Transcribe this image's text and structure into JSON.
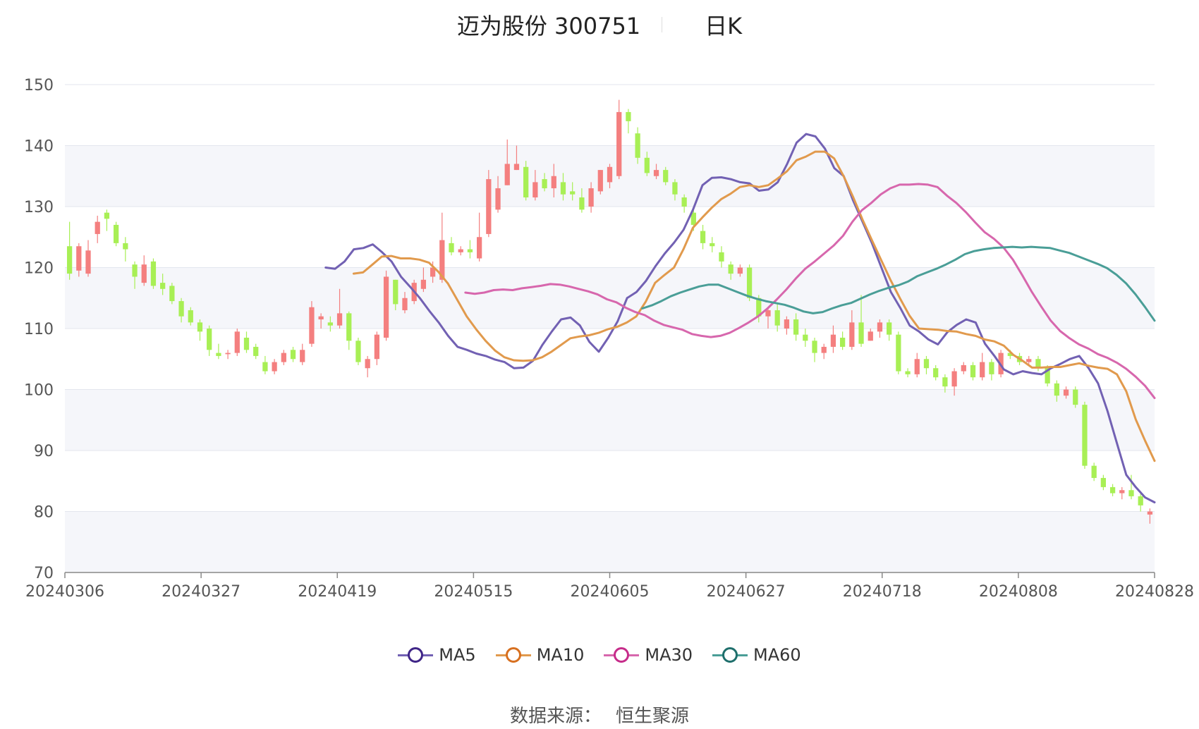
{
  "chart_data": {
    "type": "candlestick",
    "title": "迈为股份 300751",
    "subtitle": "日K",
    "y_ticks": [
      70,
      80,
      90,
      100,
      110,
      120,
      130,
      140,
      150
    ],
    "ylim": [
      70,
      150
    ],
    "x_tick_labels": [
      "20240306",
      "20240327",
      "20240419",
      "20240515",
      "20240605",
      "20240627",
      "20240718",
      "20240808",
      "20240828"
    ],
    "grid": true,
    "legend_position": "bottom",
    "colors": {
      "up": "#f47f7f",
      "down": "#a8ef55",
      "ma5": "#7261b3",
      "ma10": "#e19a4d",
      "ma30": "#d767ad",
      "ma60": "#4a9e97",
      "grid": "#e3e6ee",
      "band": "#f5f6fa",
      "axis": "#888888"
    },
    "series": [
      {
        "name": "MA5",
        "key": "ma5",
        "values": [
          120,
          119.8,
          121,
          123,
          123.2,
          123.8,
          122.5,
          121,
          118.5,
          116.8,
          115,
          112.9,
          111,
          108.8,
          107,
          106.5,
          105.9,
          105.5,
          104.9,
          104.5,
          103.5,
          103.6,
          104.7,
          107.3,
          109.5,
          111.5,
          111.8,
          110.5,
          107.8,
          106.2,
          108.5,
          111.2,
          115,
          116,
          117.8,
          120.2,
          122.3,
          124.1,
          126.2,
          129.5,
          133.5,
          134.7,
          134.8,
          134.5,
          134,
          133.8,
          132.6,
          132.8,
          134,
          137,
          140.5,
          141.9,
          141.5,
          139.5,
          136.3,
          135,
          131,
          127.5,
          124,
          120,
          116,
          113.4,
          110.5,
          109.5,
          108.2,
          107.4,
          109.4,
          110.6,
          111.5,
          111,
          107.5,
          105.5,
          103.3,
          102.5,
          103,
          102.7,
          102.5,
          103.5,
          104.2,
          105,
          105.5,
          103.5,
          101,
          96.5,
          91.2,
          86,
          84,
          82.3,
          81.5
        ]
      },
      {
        "name": "MA10",
        "key": "ma10",
        "values": [
          119,
          119.2,
          120.5,
          121.8,
          121.9,
          121.5,
          121.5,
          121.3,
          120.8,
          119.3,
          117.4,
          114.7,
          112,
          109.9,
          108,
          106.4,
          105.3,
          104.8,
          104.7,
          104.8,
          105.3,
          106.2,
          107.3,
          108.4,
          108.7,
          108.9,
          109.3,
          109.9,
          110.3,
          111,
          112,
          114.4,
          117.5,
          118.8,
          120,
          123,
          126.5,
          128.2,
          129.8,
          131.2,
          132.1,
          133.2,
          133.5,
          133.2,
          133.5,
          134.6,
          135.8,
          137.6,
          138.2,
          139,
          139,
          137.9,
          135,
          131.6,
          127.9,
          124.5,
          121.2,
          117.9,
          114.9,
          112.1,
          110,
          109.9,
          109.8,
          109.6,
          109.5,
          109.1,
          108.8,
          108.2,
          107.9,
          107.2,
          105.7,
          104.7,
          103.6,
          103.6,
          103.7,
          103.7,
          104,
          104.3,
          103.9,
          103.6,
          103.4,
          102.5,
          99.7,
          95.1,
          91.6,
          88.3
        ]
      },
      {
        "name": "MA30",
        "key": "ma30",
        "values": [
          115.9,
          115.7,
          115.9,
          116.3,
          116.4,
          116.3,
          116.6,
          116.8,
          117,
          117.3,
          117.2,
          116.9,
          116.5,
          116.1,
          115.6,
          114.8,
          114.3,
          113.4,
          112.7,
          112.2,
          111.3,
          110.6,
          110.2,
          109.8,
          109.1,
          108.8,
          108.6,
          108.8,
          109.3,
          110.1,
          111,
          112,
          113.3,
          114.8,
          116.4,
          118.2,
          119.8,
          121,
          122.3,
          123.6,
          125.2,
          127.5,
          129.4,
          130.6,
          132,
          133,
          133.6,
          133.6,
          133.7,
          133.6,
          133.2,
          131.8,
          130.6,
          129.1,
          127.4,
          125.8,
          124.7,
          123.3,
          121.3,
          118.7,
          116,
          113.6,
          111.3,
          109.6,
          108.4,
          107.4,
          106.7,
          105.8,
          105.2,
          104.4,
          103.4,
          102.1,
          100.6,
          98.6
        ]
      },
      {
        "name": "MA60",
        "key": "ma60",
        "values": [
          113.3,
          113.8,
          114.5,
          115.3,
          115.9,
          116.4,
          116.9,
          117.2,
          117.2,
          116.6,
          116,
          115.4,
          114.9,
          114.5,
          114.2,
          113.9,
          113.4,
          112.8,
          112.5,
          112.7,
          113.3,
          113.8,
          114.2,
          114.9,
          115.6,
          116.2,
          116.7,
          117.1,
          117.7,
          118.6,
          119.2,
          119.8,
          120.5,
          121.3,
          122.2,
          122.7,
          123,
          123.2,
          123.3,
          123.4,
          123.3,
          123.4,
          123.3,
          123.2,
          122.8,
          122.4,
          121.8,
          121.2,
          120.6,
          119.9,
          118.8,
          117.4,
          115.6,
          113.5,
          111.3
        ]
      }
    ],
    "candles": [
      [
        123.5,
        119,
        127.5,
        118
      ],
      [
        119.5,
        123.5,
        124,
        118.5
      ],
      [
        119,
        122.8,
        124.5,
        118.5
      ],
      [
        125.5,
        127.5,
        128.5,
        124
      ],
      [
        129,
        128,
        129.5,
        126
      ],
      [
        127,
        124,
        127.5,
        123.5
      ],
      [
        124,
        123,
        125,
        121
      ],
      [
        120.5,
        118.5,
        121,
        116.5
      ],
      [
        117.5,
        120.5,
        122,
        117
      ],
      [
        121,
        117,
        121.5,
        116.5
      ],
      [
        117.5,
        116.5,
        119,
        115.5
      ],
      [
        117,
        114.5,
        117.5,
        114
      ],
      [
        114.5,
        112,
        115,
        111
      ],
      [
        113,
        111,
        113.5,
        110.5
      ],
      [
        111,
        109.5,
        111.5,
        108
      ],
      [
        110,
        106.5,
        110.5,
        105.5
      ],
      [
        106,
        105.5,
        107.5,
        105
      ],
      [
        105.8,
        106,
        106.5,
        105
      ],
      [
        106,
        109.5,
        110,
        105.5
      ],
      [
        108.5,
        106.5,
        109.5,
        106
      ],
      [
        107,
        105.5,
        107.5,
        105
      ],
      [
        104.5,
        103,
        105.5,
        102.5
      ],
      [
        103,
        104.5,
        105,
        102.5
      ],
      [
        104.5,
        106,
        106.5,
        104
      ],
      [
        106.5,
        105,
        107,
        104.5
      ],
      [
        104.5,
        106.5,
        107.5,
        104
      ],
      [
        107.5,
        113.5,
        114.5,
        107
      ],
      [
        111.5,
        112,
        112.5,
        110
      ],
      [
        111,
        110.5,
        112,
        109.5
      ],
      [
        110.5,
        112.5,
        116.5,
        110
      ],
      [
        112.5,
        108,
        112.8,
        106.5
      ],
      [
        108,
        104.5,
        108.5,
        104
      ],
      [
        103.5,
        105,
        105.5,
        102
      ],
      [
        105,
        109,
        109.5,
        104
      ],
      [
        108.5,
        118.5,
        119.5,
        108
      ],
      [
        118,
        114,
        118,
        113
      ],
      [
        113,
        115,
        116,
        112.5
      ],
      [
        114.5,
        117.5,
        118,
        114
      ],
      [
        116.5,
        118,
        120,
        116
      ],
      [
        118.5,
        120,
        121,
        117.5
      ],
      [
        118,
        124.5,
        129,
        117.5
      ],
      [
        124,
        122.5,
        125,
        122
      ],
      [
        122.5,
        123,
        123.5,
        122
      ],
      [
        123,
        122.5,
        124.5,
        121.5
      ],
      [
        121.5,
        125,
        129,
        121
      ],
      [
        125.5,
        134.5,
        136,
        125
      ],
      [
        129.5,
        133,
        135,
        129
      ],
      [
        133.5,
        137,
        141,
        133.5
      ],
      [
        136,
        137,
        140,
        136
      ],
      [
        136.5,
        131.5,
        137.5,
        131
      ],
      [
        131.5,
        134,
        136,
        131
      ],
      [
        134.5,
        133,
        135.5,
        132.5
      ],
      [
        133,
        135,
        137,
        131.5
      ],
      [
        134,
        132,
        135.5,
        131
      ],
      [
        132.5,
        132,
        134,
        131
      ],
      [
        131.5,
        129.5,
        133,
        129
      ],
      [
        130,
        133,
        134,
        129
      ],
      [
        132.5,
        136,
        136,
        132
      ],
      [
        134,
        136.5,
        137,
        133
      ],
      [
        135,
        145.5,
        147.5,
        134.5
      ],
      [
        145.5,
        144,
        146,
        142
      ],
      [
        142,
        138,
        143,
        137
      ],
      [
        138,
        135.5,
        139,
        135
      ],
      [
        135,
        136,
        137,
        134.5
      ],
      [
        136,
        134,
        136.5,
        133.5
      ],
      [
        134,
        132,
        134.5,
        131
      ],
      [
        131.5,
        130,
        132,
        129
      ],
      [
        129,
        127,
        130,
        126
      ],
      [
        126,
        124,
        127,
        123
      ],
      [
        124,
        123.5,
        125,
        122.5
      ],
      [
        122.5,
        121,
        123.5,
        120
      ],
      [
        120.5,
        119,
        121,
        118
      ],
      [
        119,
        120,
        120.5,
        118.5
      ],
      [
        120,
        115,
        120.5,
        114.5
      ],
      [
        115,
        112,
        115.5,
        111
      ],
      [
        112,
        113,
        113.5,
        110
      ],
      [
        113,
        110.5,
        114,
        109.5
      ],
      [
        110,
        111.5,
        112,
        109
      ],
      [
        111.5,
        109,
        112.5,
        108
      ],
      [
        109,
        108,
        110,
        107
      ],
      [
        108,
        106,
        108.5,
        104.5
      ],
      [
        106,
        107,
        107.5,
        105
      ],
      [
        107,
        109,
        110.5,
        106
      ],
      [
        108.5,
        107,
        109.5,
        106.5
      ],
      [
        107,
        111,
        113,
        106.5
      ],
      [
        111,
        107.5,
        115.5,
        107
      ],
      [
        108,
        109.5,
        110,
        108
      ],
      [
        109.5,
        111,
        111.5,
        108.5
      ],
      [
        111,
        109,
        111.5,
        108
      ],
      [
        109,
        103,
        109.5,
        102.5
      ],
      [
        103,
        102.5,
        103.5,
        102
      ],
      [
        102.5,
        105,
        106,
        102
      ],
      [
        105,
        103.5,
        105.5,
        102.5
      ],
      [
        103.5,
        102,
        104,
        101.5
      ],
      [
        102,
        100.5,
        102.5,
        99.5
      ],
      [
        100.5,
        103,
        103.5,
        99
      ],
      [
        103,
        104,
        104.5,
        102.5
      ],
      [
        104,
        102,
        104.5,
        101.5
      ],
      [
        102,
        104.5,
        106,
        101.5
      ],
      [
        104.5,
        102.5,
        105,
        101.5
      ],
      [
        102.5,
        106,
        106.5,
        102
      ],
      [
        106,
        105.5,
        106.5,
        105
      ],
      [
        105.5,
        104.5,
        106,
        104
      ],
      [
        104.5,
        105,
        105.5,
        104
      ],
      [
        105,
        103.5,
        105.5,
        103
      ],
      [
        103.5,
        101,
        104,
        100.5
      ],
      [
        101,
        99,
        101.5,
        98
      ],
      [
        99,
        100,
        100.5,
        98.5
      ],
      [
        100,
        97.5,
        100.5,
        97
      ],
      [
        97.5,
        87.5,
        98,
        87
      ],
      [
        87.5,
        85.5,
        88,
        85
      ],
      [
        85.5,
        84,
        86,
        83.5
      ],
      [
        84,
        83,
        84.5,
        82.5
      ],
      [
        83,
        83.5,
        84,
        82
      ],
      [
        83.5,
        82.5,
        86,
        82
      ],
      [
        82.5,
        81,
        83,
        80
      ],
      [
        79.5,
        80,
        80.5,
        78
      ]
    ]
  }
}
